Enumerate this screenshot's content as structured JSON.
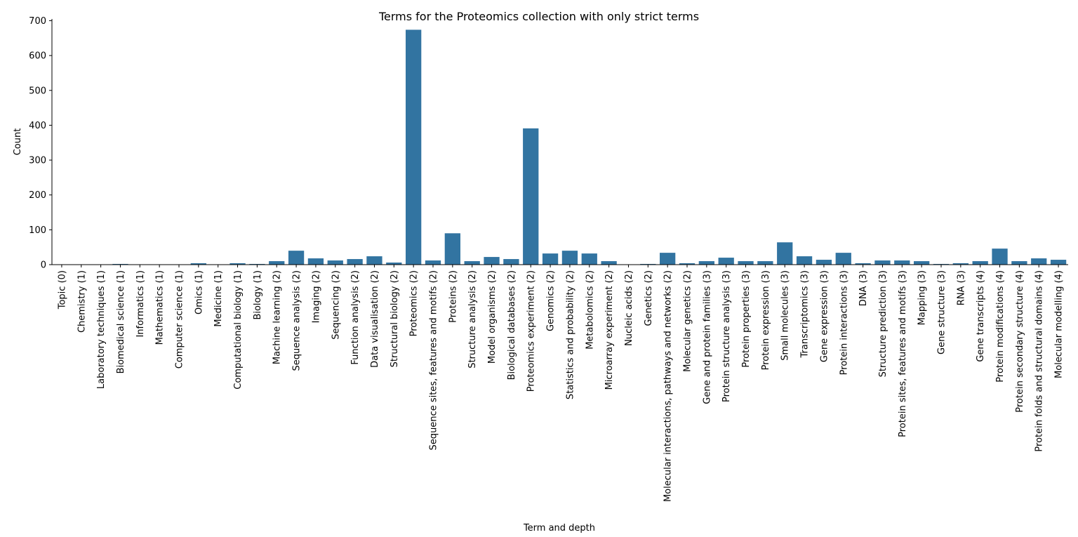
{
  "chart_data": {
    "type": "bar",
    "title": "Terms for the Proteomics collection with only strict terms",
    "xlabel": "Term and depth",
    "ylabel": "Count",
    "ylim": [
      0,
      705
    ],
    "yticks": [
      0,
      100,
      200,
      300,
      400,
      500,
      600,
      700
    ],
    "grid": false,
    "bar_color": "#3274a1",
    "categories": [
      "Topic (0)",
      "Chemistry (1)",
      "Laboratory techniques (1)",
      "Biomedical science (1)",
      "Informatics (1)",
      "Mathematics (1)",
      "Computer science (1)",
      "Omics (1)",
      "Medicine (1)",
      "Computational biology (1)",
      "Biology (1)",
      "Machine learning (2)",
      "Sequence analysis (2)",
      "Imaging (2)",
      "Sequencing (2)",
      "Function analysis (2)",
      "Data visualisation (2)",
      "Structural biology (2)",
      "Proteomics (2)",
      "Sequence sites, features and motifs (2)",
      "Proteins (2)",
      "Structure analysis (2)",
      "Model organisms (2)",
      "Biological databases (2)",
      "Proteomics experiment (2)",
      "Genomics (2)",
      "Statistics and probability (2)",
      "Metabolomics (2)",
      "Microarray experiment (2)",
      "Nucleic acids (2)",
      "Genetics (2)",
      "Molecular interactions, pathways and networks (2)",
      "Molecular genetics (2)",
      "Gene and protein families (3)",
      "Protein structure analysis (3)",
      "Protein properties (3)",
      "Protein expression (3)",
      "Small molecules (3)",
      "Transcriptomics (3)",
      "Gene expression (3)",
      "Protein interactions (3)",
      "DNA (3)",
      "Structure prediction (3)",
      "Protein sites, features and motifs (3)",
      "Mapping (3)",
      "Gene structure (3)",
      "RNA (3)",
      "Gene transcripts (4)",
      "Protein modifications (4)",
      "Protein secondary structure (4)",
      "Protein folds and structural domains (4)",
      "Molecular modelling (4)"
    ],
    "values": [
      0,
      0,
      0,
      2,
      0,
      0,
      0,
      4,
      0,
      4,
      2,
      10,
      40,
      18,
      12,
      16,
      24,
      6,
      674,
      12,
      90,
      10,
      22,
      16,
      391,
      32,
      40,
      32,
      10,
      0,
      2,
      34,
      4,
      10,
      20,
      10,
      10,
      64,
      24,
      14,
      34,
      4,
      12,
      12,
      10,
      2,
      4,
      10,
      46,
      10,
      18,
      14
    ]
  }
}
